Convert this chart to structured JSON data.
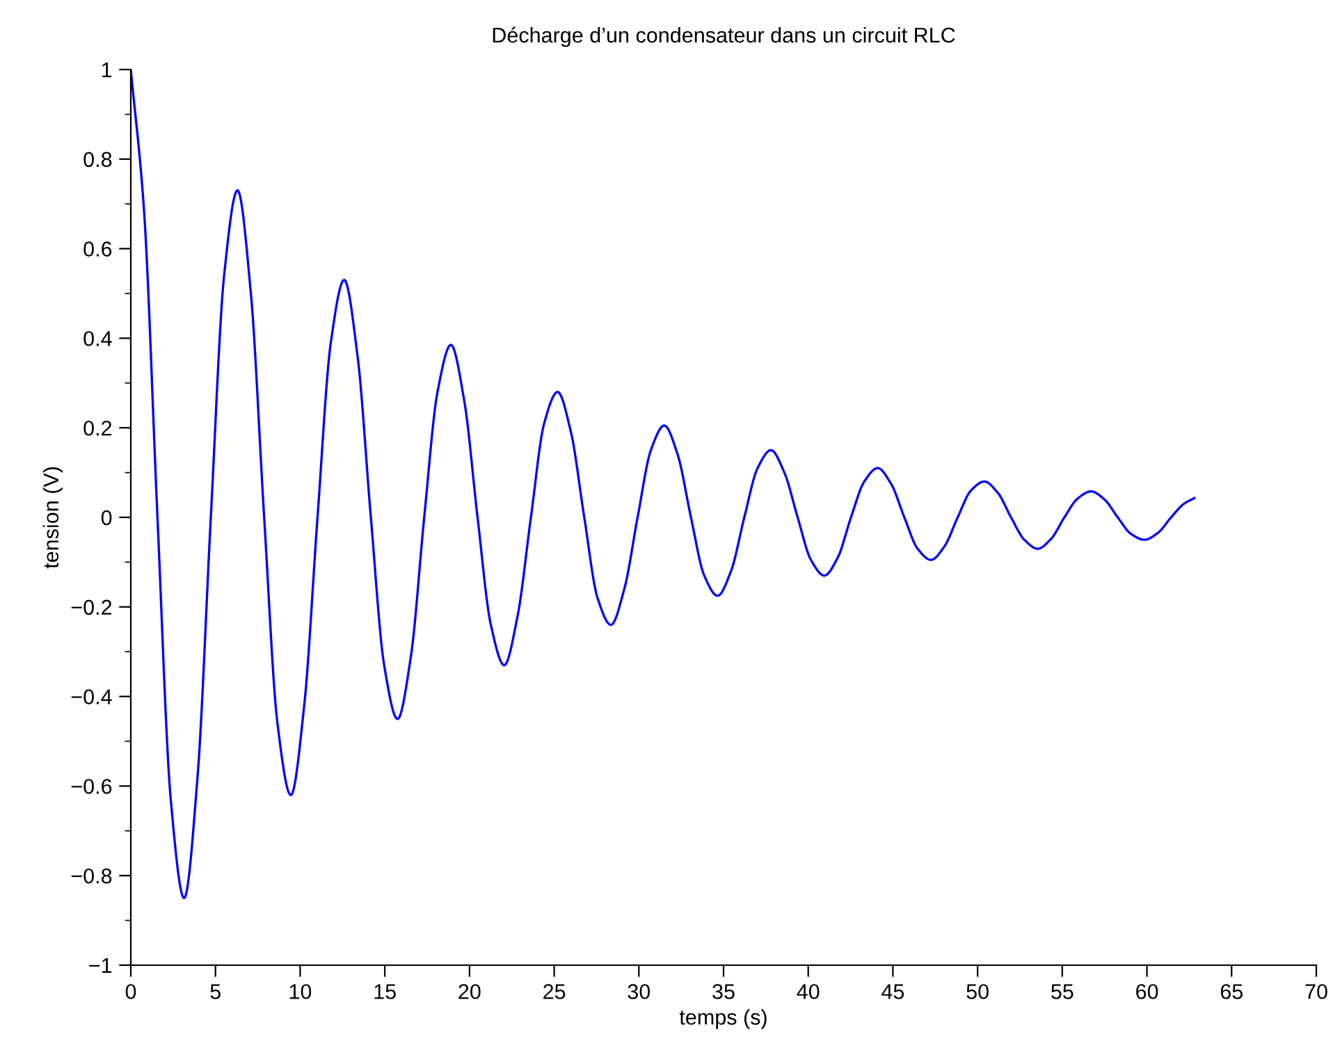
{
  "chart_data": {
    "type": "line",
    "title": "Décharge d’un condensateur dans un circuit RLC",
    "xlabel": "temps (s)",
    "ylabel": "tension (V)",
    "x": [
      0,
      0.79,
      1.575,
      2.36,
      3.15,
      3.94,
      4.725,
      5.51,
      6.3,
      7.09,
      7.875,
      8.66,
      9.45,
      10.24,
      11.025,
      11.81,
      12.6,
      13.39,
      14.175,
      14.96,
      15.75,
      16.54,
      17.325,
      18.11,
      18.9,
      19.69,
      20.475,
      21.26,
      22.05,
      22.84,
      23.625,
      24.41,
      25.2,
      25.99,
      26.775,
      27.56,
      28.35,
      29.14,
      29.925,
      30.71,
      31.5,
      32.29,
      33.075,
      33.86,
      34.65,
      35.44,
      36.225,
      37.01,
      37.8,
      38.59,
      39.375,
      40.16,
      40.95,
      41.74,
      42.525,
      43.31,
      44.1,
      44.89,
      45.675,
      46.46,
      47.25,
      48.04,
      48.825,
      49.61,
      50.4,
      51.19,
      51.975,
      52.76,
      53.55,
      54.34,
      55.125,
      55.91,
      56.7,
      57.49,
      58.275,
      59.06,
      59.85,
      60.64,
      61.425,
      62.21,
      62.8
    ],
    "series": [
      {
        "color": "#0000ff",
        "values": [
          1.0,
          0.68,
          0,
          -0.63,
          -0.85,
          -0.58,
          0,
          0.54,
          0.73,
          0.5,
          0,
          -0.46,
          -0.62,
          -0.42,
          0,
          0.39,
          0.53,
          0.36,
          0,
          -0.33,
          -0.45,
          -0.31,
          0,
          0.28,
          0.385,
          0.26,
          0,
          -0.24,
          -0.33,
          -0.22,
          0,
          0.21,
          0.28,
          0.19,
          0,
          -0.18,
          -0.24,
          -0.16,
          0,
          0.15,
          0.205,
          0.14,
          0,
          -0.13,
          -0.175,
          -0.12,
          0,
          0.11,
          0.15,
          0.1,
          0,
          -0.095,
          -0.13,
          -0.09,
          0,
          0.08,
          0.11,
          0.075,
          0,
          -0.07,
          -0.095,
          -0.065,
          0,
          0.06,
          0.08,
          0.055,
          0,
          -0.05,
          -0.07,
          -0.048,
          0,
          0.042,
          0.058,
          0.04,
          0,
          -0.037,
          -0.05,
          -0.035,
          0,
          0.031,
          0.043
        ]
      }
    ],
    "xlim": [
      0,
      70
    ],
    "xticks": [
      0,
      5,
      10,
      15,
      20,
      25,
      30,
      35,
      40,
      45,
      50,
      55,
      60,
      65,
      70
    ],
    "ylim": [
      -1,
      1
    ],
    "yticks": [
      {
        "value": -1,
        "label": "−1"
      },
      {
        "value": -0.9,
        "label": null
      },
      {
        "value": -0.8,
        "label": "−0.8"
      },
      {
        "value": -0.7,
        "label": null
      },
      {
        "value": -0.6,
        "label": "−0.6"
      },
      {
        "value": -0.5,
        "label": null
      },
      {
        "value": -0.4,
        "label": "−0.4"
      },
      {
        "value": -0.3,
        "label": null
      },
      {
        "value": -0.2,
        "label": "−0.2"
      },
      {
        "value": -0.1,
        "label": null
      },
      0,
      {
        "value": 0.1,
        "label": null
      },
      0.2,
      {
        "value": 0.3,
        "label": null
      },
      0.4,
      {
        "value": 0.5,
        "label": null
      },
      0.6,
      {
        "value": 0.7,
        "label": null
      },
      0.8,
      {
        "value": 0.9,
        "label": null
      },
      1
    ],
    "grid": false,
    "legend": false,
    "marker": "none",
    "line_style": "solid"
  }
}
